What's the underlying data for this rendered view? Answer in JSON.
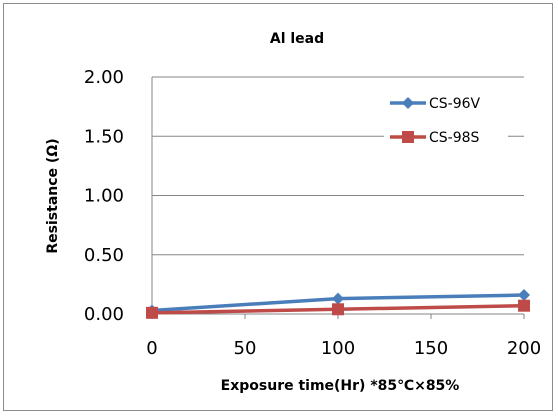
{
  "chart_data": {
    "type": "line",
    "title": "Al lead",
    "xlabel": "Exposure time(Hr)  *85℃×85%",
    "ylabel": "Resistance (Ω)",
    "x": [
      0,
      100,
      200
    ],
    "xlim": [
      0,
      200
    ],
    "ylim": [
      0,
      2
    ],
    "x_ticks": [
      "0",
      "50",
      "100",
      "150",
      "200"
    ],
    "y_ticks": [
      "0.00",
      "0.50",
      "1.00",
      "1.50",
      "2.00"
    ],
    "grid": "horizontal",
    "legend_position": "top-right",
    "series": [
      {
        "name": "CS-96V",
        "values": [
          0.03,
          0.13,
          0.16
        ],
        "color": "#4a7ebb",
        "marker": "diamond"
      },
      {
        "name": "CS-98S",
        "values": [
          0.01,
          0.04,
          0.07
        ],
        "color": "#be4b48",
        "marker": "square"
      }
    ]
  }
}
